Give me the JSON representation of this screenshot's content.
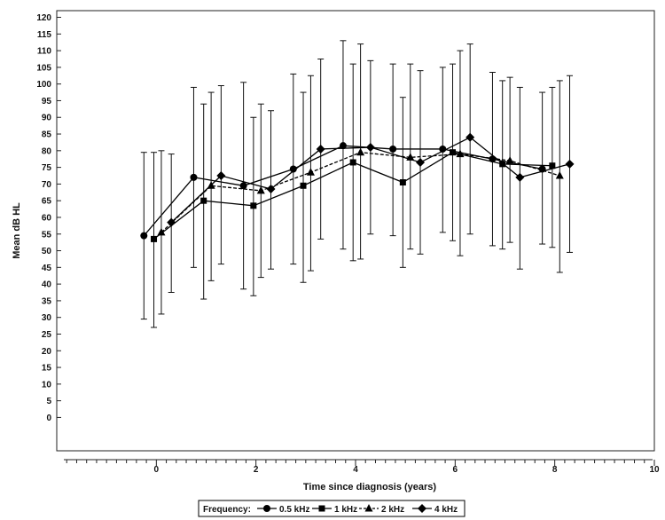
{
  "chart_data": {
    "type": "line",
    "title": "",
    "xlabel": "Time since diagnosis (years)",
    "ylabel": "Mean dB HL",
    "xlim": [
      -2,
      10
    ],
    "ylim": [
      -10,
      122
    ],
    "x_ticks": [
      0,
      2,
      4,
      6,
      8,
      10
    ],
    "y_ticks": [
      0,
      5,
      10,
      15,
      20,
      25,
      30,
      35,
      40,
      45,
      50,
      55,
      60,
      65,
      70,
      75,
      80,
      85,
      90,
      95,
      100,
      105,
      110,
      115,
      120
    ],
    "grid": false,
    "legend": {
      "title": "Frequency:",
      "position": "bottom-center",
      "entries": [
        "0.5 kHz",
        "1 kHz",
        "2 kHz",
        "4 kHz"
      ]
    },
    "series": [
      {
        "name": "0.5 kHz",
        "marker": "circle",
        "dash": "solid",
        "points": [
          {
            "x": -0.25,
            "y": 54.5,
            "lo": 29.5,
            "hi": 79.5
          },
          {
            "x": 0.75,
            "y": 72,
            "lo": 45,
            "hi": 99
          },
          {
            "x": 1.75,
            "y": 69.5,
            "lo": 38.5,
            "hi": 100.5
          },
          {
            "x": 2.75,
            "y": 74.5,
            "lo": 46,
            "hi": 103
          },
          {
            "x": 3.75,
            "y": 81.5,
            "lo": 50.5,
            "hi": 113
          },
          {
            "x": 4.75,
            "y": 80.5,
            "lo": 54.5,
            "hi": 106
          },
          {
            "x": 5.75,
            "y": 80.5,
            "lo": 55.5,
            "hi": 105
          },
          {
            "x": 6.75,
            "y": 77.5,
            "lo": 51.5,
            "hi": 103.5
          },
          {
            "x": 7.75,
            "y": 74.5,
            "lo": 52,
            "hi": 97.5
          }
        ]
      },
      {
        "name": "1 kHz",
        "marker": "square",
        "dash": "solid",
        "points": [
          {
            "x": -0.05,
            "y": 53.5,
            "lo": 27,
            "hi": 79.5
          },
          {
            "x": 0.95,
            "y": 65,
            "lo": 35.5,
            "hi": 94
          },
          {
            "x": 1.95,
            "y": 63.5,
            "lo": 36.5,
            "hi": 90
          },
          {
            "x": 2.95,
            "y": 69.5,
            "lo": 40.5,
            "hi": 97.5
          },
          {
            "x": 3.95,
            "y": 76.5,
            "lo": 47,
            "hi": 106
          },
          {
            "x": 4.95,
            "y": 70.5,
            "lo": 45,
            "hi": 96
          },
          {
            "x": 5.95,
            "y": 79.5,
            "lo": 53,
            "hi": 106
          },
          {
            "x": 6.95,
            "y": 76,
            "lo": 50.5,
            "hi": 101
          },
          {
            "x": 7.95,
            "y": 75.5,
            "lo": 51,
            "hi": 99
          }
        ]
      },
      {
        "name": "2 kHz",
        "marker": "triangle",
        "dash": "dashed",
        "points": [
          {
            "x": 0.1,
            "y": 55.5,
            "lo": 31,
            "hi": 80
          },
          {
            "x": 1.1,
            "y": 69.5,
            "lo": 41,
            "hi": 97.5
          },
          {
            "x": 2.1,
            "y": 68,
            "lo": 42,
            "hi": 94
          },
          {
            "x": 3.1,
            "y": 73.5,
            "lo": 44,
            "hi": 102.5
          },
          {
            "x": 4.1,
            "y": 79.5,
            "lo": 47.5,
            "hi": 112
          },
          {
            "x": 5.1,
            "y": 78,
            "lo": 50.5,
            "hi": 106
          },
          {
            "x": 6.1,
            "y": 79,
            "lo": 48.5,
            "hi": 110
          },
          {
            "x": 7.1,
            "y": 77,
            "lo": 52.5,
            "hi": 102
          },
          {
            "x": 8.1,
            "y": 72.5,
            "lo": 43.5,
            "hi": 101
          }
        ]
      },
      {
        "name": "4 kHz",
        "marker": "diamond",
        "dash": "solid",
        "points": [
          {
            "x": 0.3,
            "y": 58.5,
            "lo": 37.5,
            "hi": 79
          },
          {
            "x": 1.3,
            "y": 72.5,
            "lo": 46,
            "hi": 99.5
          },
          {
            "x": 2.3,
            "y": 68.5,
            "lo": 44.5,
            "hi": 92
          },
          {
            "x": 3.3,
            "y": 80.5,
            "lo": 53.5,
            "hi": 107.5
          },
          {
            "x": 4.3,
            "y": 81,
            "lo": 55,
            "hi": 107
          },
          {
            "x": 5.3,
            "y": 76.5,
            "lo": 49,
            "hi": 104
          },
          {
            "x": 6.3,
            "y": 84,
            "lo": 55,
            "hi": 112
          },
          {
            "x": 7.3,
            "y": 72,
            "lo": 44.5,
            "hi": 99
          },
          {
            "x": 8.3,
            "y": 76,
            "lo": 49.5,
            "hi": 102.5
          }
        ]
      }
    ]
  }
}
